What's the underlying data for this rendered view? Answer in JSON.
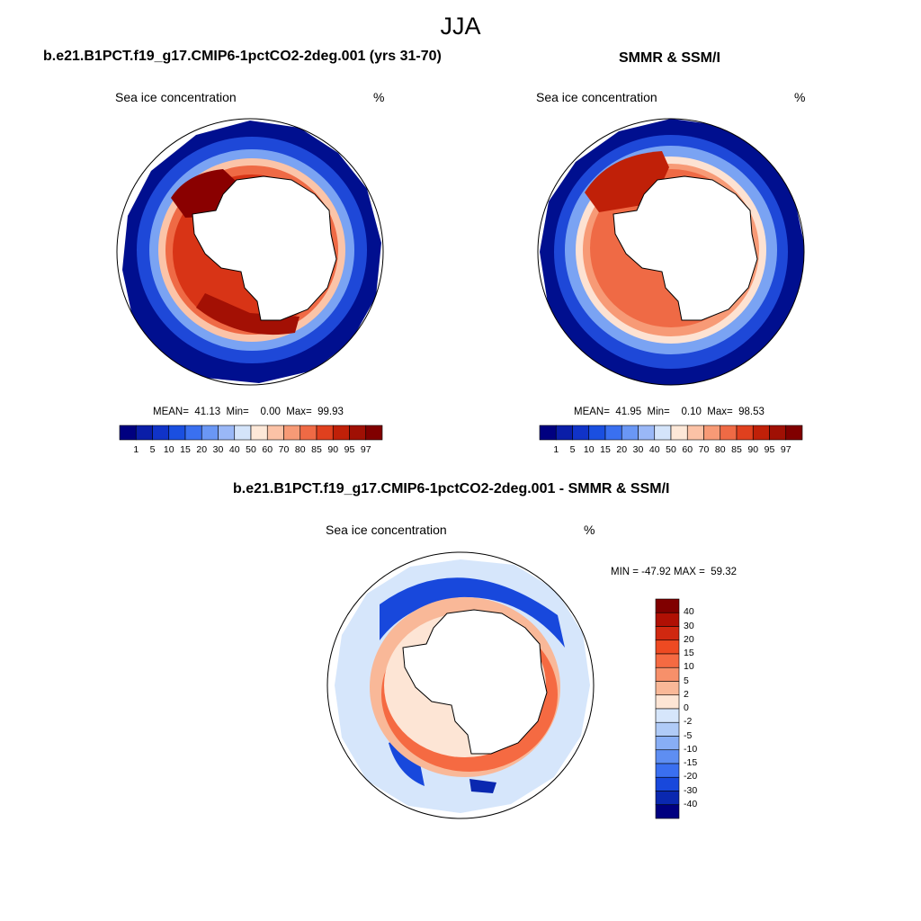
{
  "figure": {
    "title": "JJA"
  },
  "panels": [
    {
      "title": "b.e21.B1PCT.f19_g17.CMIP6-1pctCO2-2deg.001 (yrs 31-70)",
      "left_label": "Sea ice concentration",
      "right_label": "%",
      "stats": "MEAN=  41.13  Min=    0.00  Max=  99.93"
    },
    {
      "title": "SMMR & SSM/I",
      "left_label": "Sea ice concentration",
      "right_label": "%",
      "stats": "MEAN=  41.95  Min=    0.10  Max=  98.53"
    },
    {
      "title": "b.e21.B1PCT.f19_g17.CMIP6-1pctCO2-2deg.001 - SMMR & SSM/I",
      "left_label": "Sea ice concentration",
      "right_label": "%",
      "stats": "MIN = -47.92 MAX =  59.32"
    }
  ],
  "colorbar_concentration": {
    "ticks": [
      "1",
      "5",
      "10",
      "15",
      "20",
      "30",
      "40",
      "50",
      "60",
      "70",
      "80",
      "85",
      "90",
      "95",
      "97"
    ],
    "colors": [
      "#000080",
      "#0a1ea8",
      "#1033c8",
      "#1a4fe0",
      "#3a70f0",
      "#6a97f5",
      "#9ab8f7",
      "#d4e4fa",
      "#fde8d8",
      "#fbc2a6",
      "#f79a76",
      "#ef6a45",
      "#e0401e",
      "#c02008",
      "#a01004",
      "#800000"
    ]
  },
  "colorbar_difference": {
    "ticks": [
      "40",
      "30",
      "20",
      "15",
      "10",
      "5",
      "2",
      "0",
      "-2",
      "-5",
      "-10",
      "-15",
      "-20",
      "-30",
      "-40"
    ],
    "colors": [
      "#800000",
      "#b01004",
      "#d02810",
      "#ee4a22",
      "#f56a42",
      "#f7906a",
      "#f9b898",
      "#fde5d5",
      "#d6e6fb",
      "#b0cbf7",
      "#88aef5",
      "#5e8ef2",
      "#3a6ff0",
      "#1848dc",
      "#0a28b0",
      "#000080"
    ]
  },
  "colors": {
    "land": "#ffffff",
    "coast": "#000000"
  }
}
